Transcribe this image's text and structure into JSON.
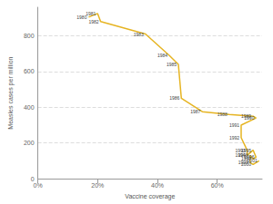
{
  "chart_data": {
    "type": "line",
    "x_label": "Vaccine coverage",
    "y_label": "Measles cases per million",
    "x": [
      17,
      20,
      21,
      36,
      44,
      47,
      48,
      55,
      64,
      72,
      73,
      68,
      68,
      70,
      70,
      72,
      73,
      72,
      71,
      71,
      72,
      74
    ],
    "values": [
      905,
      925,
      880,
      810,
      690,
      640,
      450,
      375,
      360,
      350,
      340,
      300,
      230,
      160,
      130,
      160,
      120,
      110,
      130,
      90,
      80,
      100
    ],
    "labels": [
      "1980",
      "1981",
      "1982",
      "1983",
      "1984",
      "1985",
      "1986",
      "1987",
      "1988",
      "1989",
      "1990",
      "1991",
      "1992",
      "1993",
      "1994",
      "1995",
      "1996",
      "1997",
      "1998",
      "1999",
      "2000",
      "2001"
    ],
    "color": "#e6b422",
    "xlim": [
      0,
      75
    ],
    "xticks": [
      {
        "value": 0,
        "label": "0%"
      },
      {
        "value": 20,
        "label": "20%"
      },
      {
        "value": 40,
        "label": "40%"
      },
      {
        "value": 60,
        "label": "60%"
      }
    ],
    "ylim": [
      0,
      960
    ],
    "yticks": [
      0,
      200,
      400,
      600,
      800
    ],
    "grid": true
  }
}
